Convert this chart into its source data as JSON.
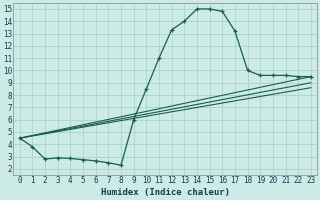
{
  "xlabel": "Humidex (Indice chaleur)",
  "xlim": [
    -0.5,
    23.5
  ],
  "ylim": [
    1.5,
    15.5
  ],
  "xticks": [
    0,
    1,
    2,
    3,
    4,
    5,
    6,
    7,
    8,
    9,
    10,
    11,
    12,
    13,
    14,
    15,
    16,
    17,
    18,
    19,
    20,
    21,
    22,
    23
  ],
  "yticks": [
    2,
    3,
    4,
    5,
    6,
    7,
    8,
    9,
    10,
    11,
    12,
    13,
    14,
    15
  ],
  "bg_color": "#cceae6",
  "grid_color": "#aad4ce",
  "line_color": "#1a5c4e",
  "main_x": [
    0,
    1,
    2,
    3,
    4,
    5,
    6,
    7,
    8,
    9,
    10,
    11,
    12,
    13,
    14,
    15,
    16,
    17,
    18,
    19,
    20,
    21,
    22,
    23
  ],
  "main_y": [
    4.5,
    3.8,
    2.8,
    2.9,
    2.85,
    2.75,
    2.65,
    2.5,
    2.3,
    6.0,
    8.5,
    11.0,
    13.3,
    14.0,
    15.0,
    15.0,
    14.8,
    13.2,
    10.0,
    9.6,
    9.6,
    9.6,
    9.5,
    9.5
  ],
  "trend1_x": [
    0,
    23
  ],
  "trend1_y": [
    4.5,
    9.5
  ],
  "trend2_x": [
    0,
    23
  ],
  "trend2_y": [
    4.5,
    9.0
  ],
  "trend3_x": [
    0,
    23
  ],
  "trend3_y": [
    4.5,
    8.6
  ]
}
